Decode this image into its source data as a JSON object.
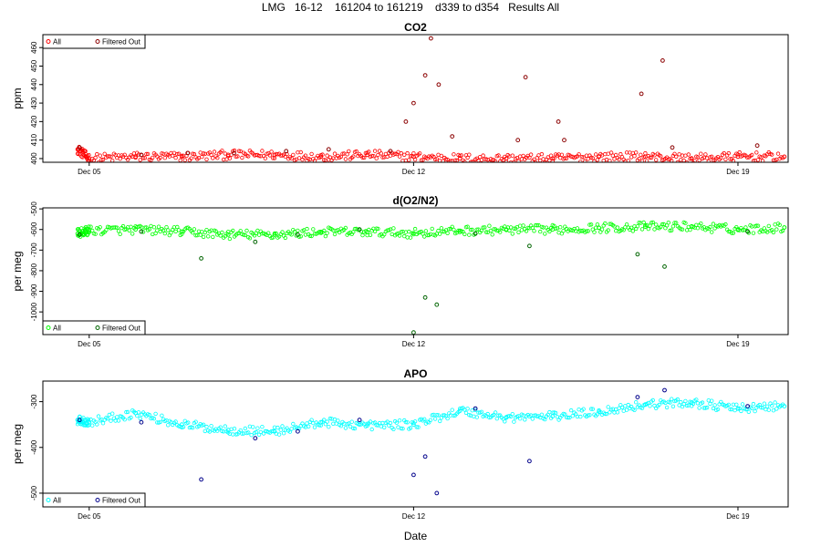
{
  "page": {
    "title": "LMG   16-12    161204 to 161219    d339 to d354   Results All",
    "xlabel": "Date"
  },
  "colors": {
    "co2_all": "#ff0000",
    "co2_filtered": "#8b0000",
    "o2_all": "#00ff00",
    "o2_filtered": "#006400",
    "apo_all": "#00ffff",
    "apo_filtered": "#00008b",
    "frame": "#000000"
  },
  "chart_data": [
    {
      "type": "scatter",
      "title": "CO2",
      "ylabel": "ppm",
      "xlabel": "",
      "x_ticks": [
        "Dec 05",
        "Dec 12",
        "Dec 19"
      ],
      "x_tick_dates": [
        "2016-12-05",
        "2016-12-12",
        "2016-12-19"
      ],
      "xlim": [
        "2016-12-04T00:00",
        "2016-12-20T02:00"
      ],
      "ylim": [
        398,
        467
      ],
      "y_ticks": [
        400,
        410,
        420,
        430,
        440,
        450,
        460
      ],
      "legend": {
        "position": "top-left",
        "entries": [
          "All",
          "Filtered Out"
        ]
      },
      "series": [
        {
          "name": "All",
          "color": "#ff0000",
          "x": [
            "2016-12-04T18:00",
            "2016-12-05T00:00",
            "2016-12-06T00:00",
            "2016-12-07T00:00",
            "2016-12-08T00:00",
            "2016-12-09T00:00",
            "2016-12-10T00:00",
            "2016-12-11T00:00",
            "2016-12-12T00:00",
            "2016-12-13T00:00",
            "2016-12-14T00:00",
            "2016-12-15T00:00",
            "2016-12-16T00:00",
            "2016-12-17T00:00",
            "2016-12-18T00:00",
            "2016-12-19T00:00",
            "2016-12-20T00:00"
          ],
          "y": [
            405,
            400,
            401,
            401,
            402,
            402,
            401,
            402,
            401,
            400,
            400,
            400,
            401,
            401,
            400,
            401,
            401
          ]
        },
        {
          "name": "Filtered Out",
          "color": "#8b0000",
          "x": [
            "2016-12-04T19:00",
            "2016-12-06T03:00",
            "2016-12-07T03:00",
            "2016-12-08T03:00",
            "2016-12-09T06:00",
            "2016-12-10T04:00",
            "2016-12-11T12:00",
            "2016-12-11T20:00",
            "2016-12-12T00:00",
            "2016-12-12T06:00",
            "2016-12-12T09:00",
            "2016-12-12T13:00",
            "2016-12-12T20:00",
            "2016-12-14T06:00",
            "2016-12-14T10:00",
            "2016-12-15T03:00",
            "2016-12-15T06:00",
            "2016-12-16T22:00",
            "2016-12-17T09:00",
            "2016-12-17T14:00",
            "2016-12-19T10:00"
          ],
          "y": [
            406,
            402,
            403,
            403,
            404,
            405,
            404,
            420,
            430,
            445,
            465,
            440,
            412,
            410,
            444,
            420,
            410,
            435,
            453,
            406,
            407
          ]
        }
      ]
    },
    {
      "type": "scatter",
      "title": "d(O2/N2)",
      "ylabel": "per meg",
      "xlabel": "",
      "x_ticks": [
        "Dec 05",
        "Dec 12",
        "Dec 19"
      ],
      "x_tick_dates": [
        "2016-12-05",
        "2016-12-12",
        "2016-12-19"
      ],
      "xlim": [
        "2016-12-04T00:00",
        "2016-12-20T02:00"
      ],
      "ylim": [
        -1110,
        -495
      ],
      "y_ticks": [
        -500,
        -600,
        -700,
        -800,
        -900,
        -1000
      ],
      "legend": {
        "position": "bottom-left",
        "entries": [
          "All",
          "Filtered Out"
        ]
      },
      "series": [
        {
          "name": "All",
          "color": "#00ff00",
          "x": [
            "2016-12-04T18:00",
            "2016-12-05T00:00",
            "2016-12-06T00:00",
            "2016-12-07T00:00",
            "2016-12-08T00:00",
            "2016-12-09T00:00",
            "2016-12-10T00:00",
            "2016-12-11T00:00",
            "2016-12-12T00:00",
            "2016-12-13T00:00",
            "2016-12-14T00:00",
            "2016-12-15T00:00",
            "2016-12-16T00:00",
            "2016-12-17T00:00",
            "2016-12-18T00:00",
            "2016-12-19T00:00",
            "2016-12-20T00:00"
          ],
          "y": [
            -620,
            -605,
            -600,
            -610,
            -625,
            -625,
            -612,
            -612,
            -618,
            -606,
            -602,
            -600,
            -592,
            -586,
            -585,
            -600,
            -590
          ]
        },
        {
          "name": "Filtered Out",
          "color": "#006400",
          "x": [
            "2016-12-04T19:00",
            "2016-12-06T03:00",
            "2016-12-07T10:00",
            "2016-12-08T14:00",
            "2016-12-09T12:00",
            "2016-12-10T20:00",
            "2016-12-12T00:00",
            "2016-12-12T06:00",
            "2016-12-12T12:00",
            "2016-12-13T08:00",
            "2016-12-14T12:00",
            "2016-12-16T20:00",
            "2016-12-17T10:00",
            "2016-12-19T05:00"
          ],
          "y": [
            -625,
            -610,
            -740,
            -660,
            -625,
            -600,
            -1100,
            -930,
            -965,
            -620,
            -680,
            -720,
            -780,
            -610
          ]
        }
      ]
    },
    {
      "type": "scatter",
      "title": "APO",
      "ylabel": "per meg",
      "xlabel": "",
      "x_ticks": [
        "Dec 05",
        "Dec 12",
        "Dec 19"
      ],
      "x_tick_dates": [
        "2016-12-05",
        "2016-12-12",
        "2016-12-19"
      ],
      "xlim": [
        "2016-12-04T00:00",
        "2016-12-20T02:00"
      ],
      "ylim": [
        -530,
        -255
      ],
      "y_ticks": [
        -300,
        -400,
        -500
      ],
      "legend": {
        "position": "bottom-left",
        "entries": [
          "All",
          "Filtered Out"
        ]
      },
      "series": [
        {
          "name": "All",
          "color": "#00ffff",
          "x": [
            "2016-12-04T18:00",
            "2016-12-05T00:00",
            "2016-12-06T00:00",
            "2016-12-07T00:00",
            "2016-12-08T00:00",
            "2016-12-09T00:00",
            "2016-12-10T00:00",
            "2016-12-11T00:00",
            "2016-12-12T00:00",
            "2016-12-13T00:00",
            "2016-12-14T00:00",
            "2016-12-15T00:00",
            "2016-12-16T00:00",
            "2016-12-17T00:00",
            "2016-12-18T00:00",
            "2016-12-19T00:00",
            "2016-12-20T00:00"
          ],
          "y": [
            -340,
            -345,
            -325,
            -350,
            -362,
            -365,
            -345,
            -352,
            -350,
            -320,
            -335,
            -332,
            -322,
            -306,
            -302,
            -315,
            -310
          ]
        },
        {
          "name": "Filtered Out",
          "color": "#00008b",
          "x": [
            "2016-12-04T19:00",
            "2016-12-06T03:00",
            "2016-12-07T10:00",
            "2016-12-08T14:00",
            "2016-12-09T12:00",
            "2016-12-10T20:00",
            "2016-12-12T00:00",
            "2016-12-12T06:00",
            "2016-12-12T12:00",
            "2016-12-13T08:00",
            "2016-12-14T12:00",
            "2016-12-16T20:00",
            "2016-12-17T10:00",
            "2016-12-19T05:00"
          ],
          "y": [
            -340,
            -345,
            -470,
            -380,
            -365,
            -340,
            -460,
            -420,
            -500,
            -315,
            -430,
            -290,
            -275,
            -310
          ]
        }
      ]
    }
  ]
}
